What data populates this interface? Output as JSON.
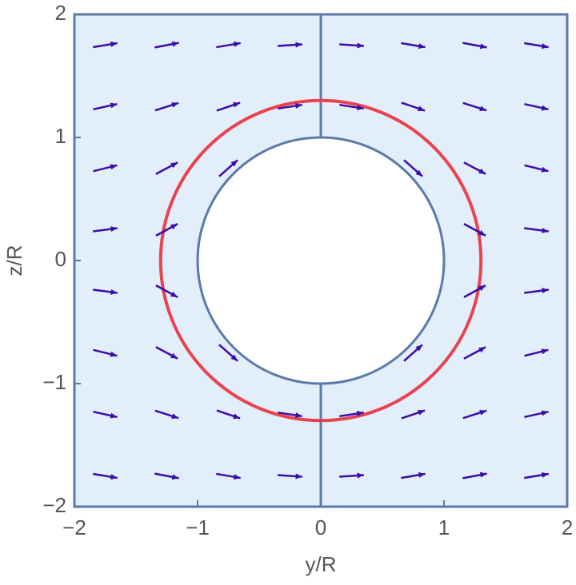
{
  "chart_data": {
    "type": "quiver",
    "xlabel": "y/R",
    "ylabel": "z/R",
    "xlim": [
      -2,
      2
    ],
    "ylim": [
      -2,
      2
    ],
    "xticks": [
      {
        "value": -2,
        "label": "−2"
      },
      {
        "value": -1,
        "label": "−1"
      },
      0,
      1,
      2
    ],
    "yticks": [
      {
        "value": -2,
        "label": "−2"
      },
      {
        "value": -1,
        "label": "−1"
      },
      0,
      1,
      2
    ],
    "color": "#3b0ca8",
    "background": "#e3eefb",
    "obstacle_radius": 1,
    "contour": {
      "radius": 1.3,
      "color": "#e8434f"
    },
    "x": [
      -1.75,
      -1.25,
      -0.75,
      -0.25,
      0.25,
      0.75,
      1.25,
      1.75,
      -1.75,
      -1.25,
      -0.75,
      -0.25,
      0.25,
      0.75,
      1.25,
      1.75,
      -1.75,
      -1.25,
      -0.75,
      0.75,
      1.25,
      1.75,
      -1.75,
      -1.25,
      1.25,
      1.75,
      -1.75,
      -1.25,
      1.25,
      1.75,
      -1.75,
      -1.25,
      -0.75,
      0.75,
      1.25,
      1.75,
      -1.75,
      -1.25,
      -0.75,
      -0.25,
      0.25,
      0.75,
      1.25,
      1.75,
      -1.75,
      -1.25,
      -0.75,
      -0.25,
      0.25,
      0.75,
      1.25,
      1.75
    ],
    "y": [
      1.75,
      1.75,
      1.75,
      1.75,
      1.75,
      1.75,
      1.75,
      1.75,
      1.25,
      1.25,
      1.25,
      1.25,
      1.25,
      1.25,
      1.25,
      1.25,
      0.75,
      0.75,
      0.75,
      0.75,
      0.75,
      0.75,
      0.25,
      0.25,
      0.25,
      0.25,
      -0.25,
      -0.25,
      -0.25,
      -0.25,
      -0.75,
      -0.75,
      -0.75,
      -0.75,
      -0.75,
      -0.75,
      -1.25,
      -1.25,
      -1.25,
      -1.25,
      -1.25,
      -1.25,
      -1.25,
      -1.25,
      -1.75,
      -1.75,
      -1.75,
      -1.75,
      -1.75,
      -1.75,
      -1.75,
      -1.75
    ],
    "u": [
      1,
      1.07,
      1.19,
      1.307,
      1.307,
      1.19,
      1.07,
      1,
      0.93,
      1,
      1.221,
      1.568,
      1.568,
      1.221,
      1,
      0.93,
      0.81,
      0.779,
      1,
      1,
      0.779,
      0.81,
      0.693,
      0.432,
      0.432,
      0.693,
      0.693,
      0.432,
      0.432,
      0.693,
      0.81,
      0.779,
      1,
      1,
      0.779,
      0.81,
      0.93,
      1,
      1.221,
      1.568,
      1.568,
      1.221,
      1,
      0.93,
      1,
      1.07,
      1.19,
      1.307,
      1.307,
      1.19,
      1.07,
      1
    ],
    "v": [
      0.163,
      0.205,
      0.2,
      0.09,
      -0.09,
      -0.2,
      -0.205,
      -0.163,
      0.205,
      0.32,
      0.415,
      0.237,
      -0.237,
      -0.415,
      -0.32,
      -0.205,
      0.2,
      0.415,
      0.889,
      -0.889,
      -0.415,
      -0.2,
      0.09,
      0.237,
      -0.237,
      -0.09,
      -0.09,
      -0.237,
      0.237,
      0.09,
      -0.2,
      -0.415,
      -0.889,
      0.889,
      0.415,
      0.2,
      -0.205,
      -0.32,
      -0.415,
      -0.237,
      0.237,
      0.415,
      0.32,
      0.205,
      -0.163,
      -0.205,
      -0.2,
      -0.09,
      0.09,
      0.2,
      0.205,
      0.163
    ]
  }
}
